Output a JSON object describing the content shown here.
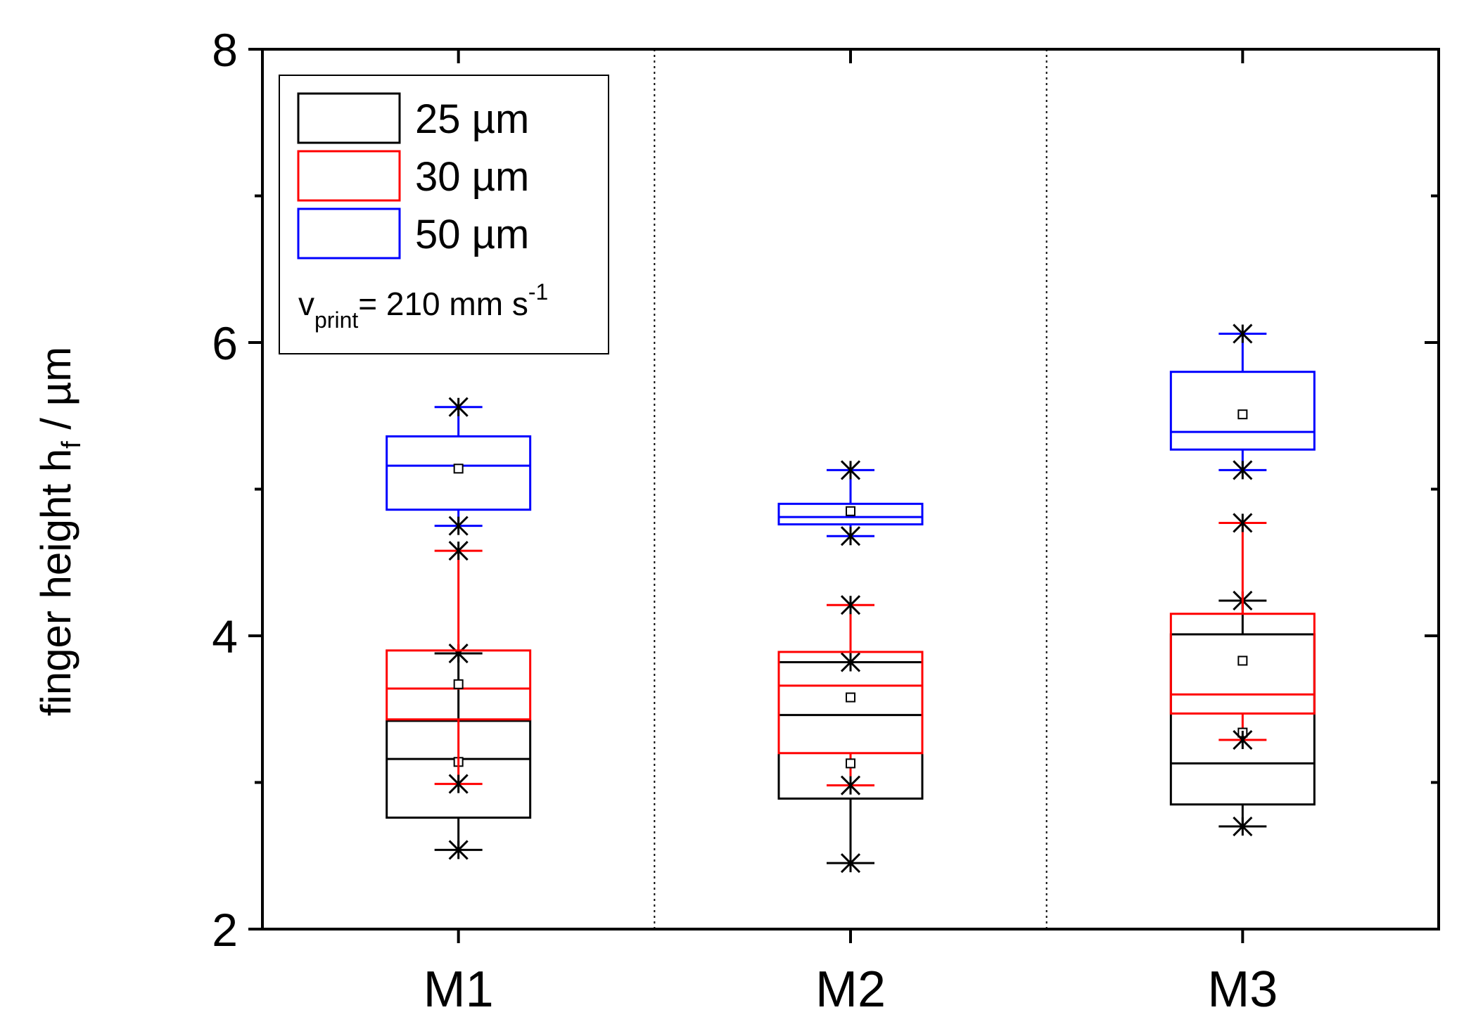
{
  "chart_data": {
    "type": "box",
    "categories": [
      "M1",
      "M2",
      "M3"
    ],
    "ylabel_main": "finger height h",
    "ylabel_sub": "f",
    "ylabel_unit": " / µm",
    "ylim": [
      2,
      8
    ],
    "yticks": [
      2,
      4,
      6,
      8
    ],
    "ytick_labels": [
      "2",
      "4",
      "6",
      "8"
    ],
    "grid": false,
    "legend_position": "top-left",
    "legend_note": {
      "v": "v",
      "sub": "print",
      "text": "= 210 mm s",
      "sup": "-1"
    },
    "series": [
      {
        "name": "25 µm",
        "color": "#000000",
        "boxes": [
          {
            "whisker_low": 2.54,
            "q1": 2.76,
            "median": 3.16,
            "q3": 3.42,
            "whisker_high": 3.88,
            "mean": 3.14,
            "min_marker": 2.54,
            "max_marker": 3.88
          },
          {
            "whisker_low": 2.45,
            "q1": 2.89,
            "median": 3.46,
            "q3": 3.82,
            "whisker_high": 3.82,
            "mean": 3.58,
            "min_marker": 2.45,
            "max_marker": 3.82
          },
          {
            "whisker_low": 2.7,
            "q1": 2.85,
            "median": 3.13,
            "q3": 4.01,
            "whisker_high": 4.24,
            "mean": 3.83,
            "min_marker": 2.7,
            "max_marker": 4.24
          }
        ]
      },
      {
        "name": "30 µm",
        "color": "#ff0000",
        "boxes": [
          {
            "whisker_low": 2.99,
            "q1": 3.43,
            "median": 3.64,
            "q3": 3.9,
            "whisker_high": 4.58,
            "mean": 3.67,
            "min_marker": 2.99,
            "max_marker": 4.58
          },
          {
            "whisker_low": 2.98,
            "q1": 3.2,
            "median": 3.66,
            "q3": 3.89,
            "whisker_high": 4.21,
            "mean": 3.13,
            "min_marker": 2.98,
            "max_marker": 4.21
          },
          {
            "whisker_low": 3.29,
            "q1": 3.47,
            "median": 3.6,
            "q3": 4.15,
            "whisker_high": 4.77,
            "mean": 3.34,
            "min_marker": 3.29,
            "max_marker": 4.77
          }
        ]
      },
      {
        "name": "50 µm",
        "color": "#0000ff",
        "boxes": [
          {
            "whisker_low": 4.75,
            "q1": 4.86,
            "median": 5.16,
            "q3": 5.36,
            "whisker_high": 5.56,
            "mean": 5.14,
            "min_marker": 4.75,
            "max_marker": 5.56
          },
          {
            "whisker_low": 4.68,
            "q1": 4.76,
            "median": 4.81,
            "q3": 4.9,
            "whisker_high": 5.13,
            "mean": 4.85,
            "min_marker": 4.68,
            "max_marker": 5.13
          },
          {
            "whisker_low": 5.13,
            "q1": 5.27,
            "median": 5.39,
            "q3": 5.8,
            "whisker_high": 6.06,
            "mean": 5.51,
            "min_marker": 5.13,
            "max_marker": 6.06
          }
        ]
      }
    ]
  }
}
